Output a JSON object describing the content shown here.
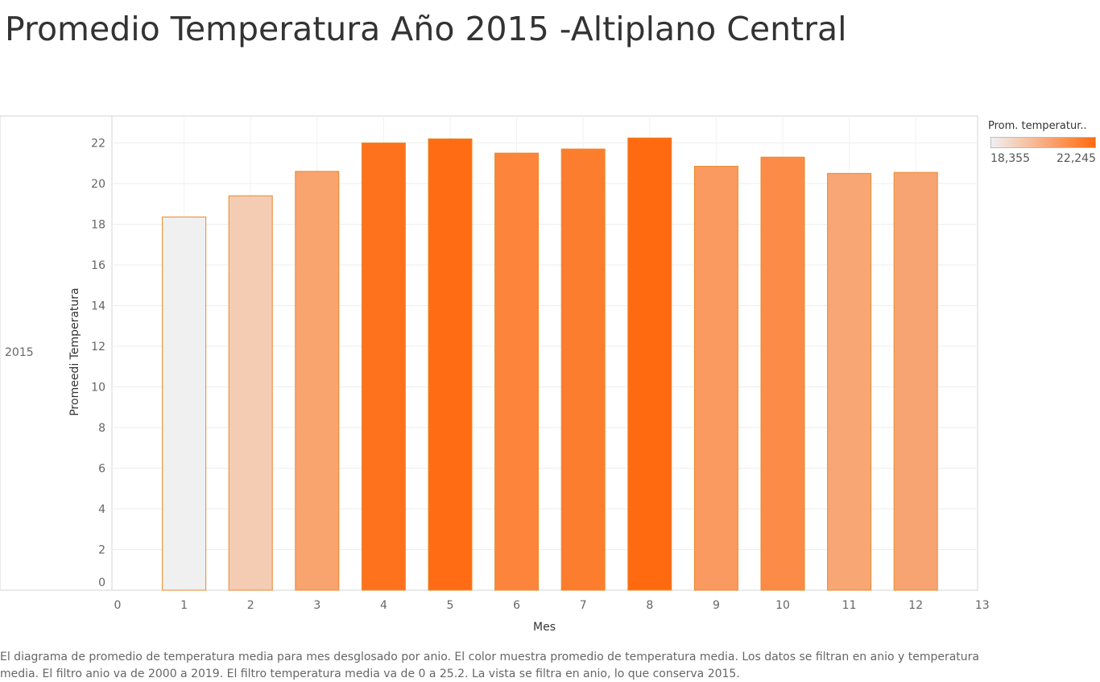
{
  "header": {
    "title": "Promedio Temperatura Año 2015 -Altiplano Central"
  },
  "row_label": "2015",
  "legend": {
    "title": "Prom. temperatur..",
    "min_label": "18,355",
    "max_label": "22,245",
    "color_low": "#f0f0f0",
    "color_high": "#ff6a10"
  },
  "caption": "El diagrama de promedio de temperatura media para mes desglosado por anio.  El color muestra promedio de temperatura media. Los datos se filtran en anio y temperatura media. El filtro anio va de 2000 a 2019. El filtro temperatura media va de 0 a 25.2. La vista se filtra en anio, lo que conserva 2015.",
  "chart_data": {
    "type": "bar",
    "title": "Promedio Temperatura Año 2015 -Altiplano Central",
    "xlabel": "Mes",
    "ylabel": "Promeedi Temperatura",
    "x": [
      1,
      2,
      3,
      4,
      5,
      6,
      7,
      8,
      9,
      10,
      11,
      12
    ],
    "values": [
      18.355,
      19.4,
      20.6,
      22.0,
      22.2,
      21.5,
      21.7,
      22.245,
      20.85,
      21.3,
      20.5,
      20.55
    ],
    "xlim": [
      0,
      13
    ],
    "ylim": [
      0,
      23
    ],
    "xticks": [
      "0",
      "1",
      "2",
      "3",
      "4",
      "5",
      "6",
      "7",
      "8",
      "9",
      "10",
      "11",
      "12",
      "13"
    ],
    "yticks": [
      "0",
      "2",
      "4",
      "6",
      "8",
      "10",
      "12",
      "14",
      "16",
      "18",
      "20",
      "22"
    ],
    "color_scale": {
      "min": 18.355,
      "max": 22.245,
      "low": "#f0f0f0",
      "high": "#ff6a10"
    },
    "bar_border_color": "#e8892a",
    "grid": true,
    "legend_position": "top-right"
  }
}
